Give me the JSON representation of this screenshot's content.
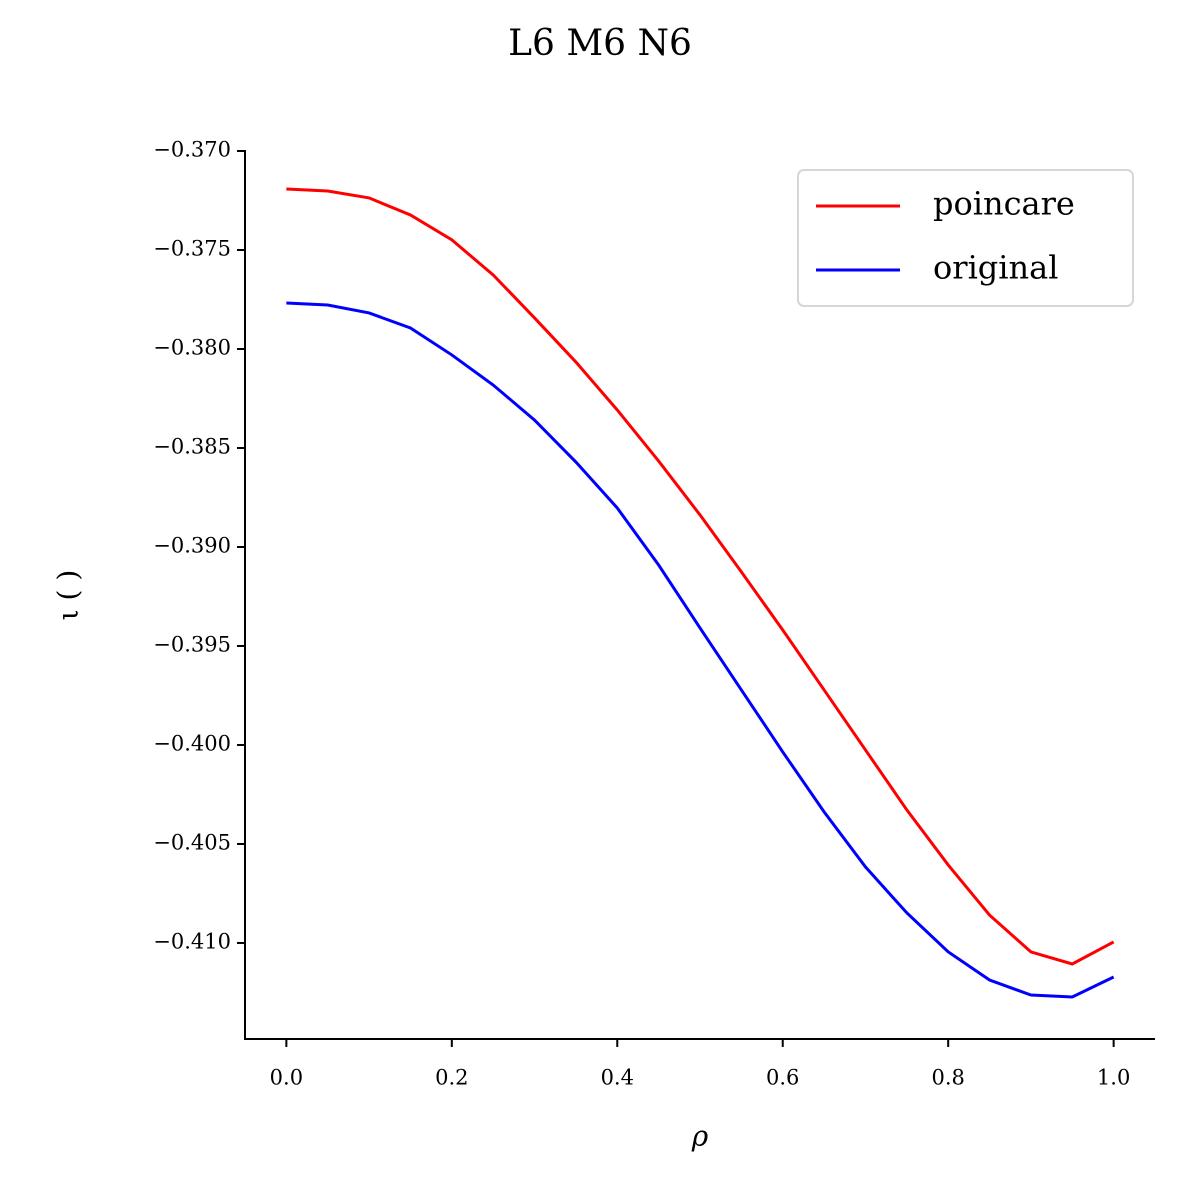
{
  "chart_data": {
    "type": "line",
    "title": "L6 M6 N6",
    "x_label": "ρ",
    "y_label": "ι ( )",
    "x": [
      0,
      0.05,
      0.1,
      0.15,
      0.2,
      0.25,
      0.3,
      0.35,
      0.4,
      0.45,
      0.5,
      0.55,
      0.6,
      0.65,
      0.7,
      0.75,
      0.8,
      0.85,
      0.9,
      0.95,
      1.0
    ],
    "series": [
      {
        "name": "poincare",
        "color": "#ff0000",
        "values": [
          -0.37192,
          -0.37202,
          -0.37237,
          -0.37323,
          -0.37449,
          -0.37626,
          -0.37843,
          -0.38066,
          -0.38308,
          -0.38566,
          -0.38838,
          -0.39126,
          -0.39419,
          -0.39722,
          -0.40025,
          -0.40328,
          -0.40606,
          -0.40859,
          -0.41045,
          -0.41106,
          -0.40995
        ]
      },
      {
        "name": "original",
        "color": "#0000ff",
        "values": [
          -0.37768,
          -0.37778,
          -0.37818,
          -0.37894,
          -0.3803,
          -0.38182,
          -0.38359,
          -0.38571,
          -0.38803,
          -0.39091,
          -0.39409,
          -0.39722,
          -0.40035,
          -0.40338,
          -0.40616,
          -0.40848,
          -0.41045,
          -0.41187,
          -0.41263,
          -0.41273,
          -0.41172
        ]
      }
    ],
    "xlim": [
      -0.05,
      1.05
    ],
    "ylim": [
      -0.41485,
      -0.37
    ],
    "xticks": [
      {
        "value": 0,
        "label": "0.0"
      },
      0.2,
      0.4,
      0.6,
      0.8,
      {
        "value": 1,
        "label": "1.0"
      }
    ],
    "yticks": [
      {
        "value": -0.37,
        "label": "−0.370"
      },
      {
        "value": -0.375,
        "label": "−0.375"
      },
      {
        "value": -0.38,
        "label": "−0.380"
      },
      {
        "value": -0.385,
        "label": "−0.385"
      },
      {
        "value": -0.39,
        "label": "−0.390"
      },
      {
        "value": -0.395,
        "label": "−0.395"
      },
      {
        "value": -0.4,
        "label": "−0.400"
      },
      {
        "value": -0.405,
        "label": "−0.405"
      },
      {
        "value": -0.41,
        "label": "−0.410"
      }
    ],
    "legend": "upper right"
  }
}
